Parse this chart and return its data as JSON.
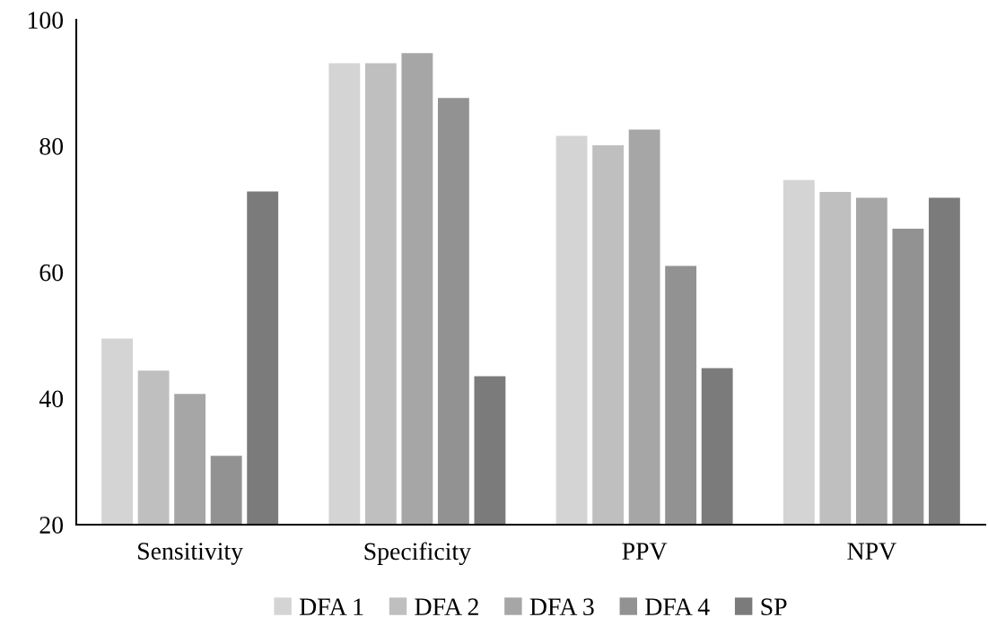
{
  "chart_data": {
    "type": "bar",
    "categories": [
      "Sensitivity",
      "Specificity",
      "PPV",
      "NPV"
    ],
    "series": [
      {
        "name": "DFA 1",
        "color": "#d4d4d4",
        "values": [
          49.5,
          93.1,
          81.6,
          74.6
        ]
      },
      {
        "name": "DFA 2",
        "color": "#bfbfbf",
        "values": [
          44.4,
          93.1,
          80.1,
          72.7
        ]
      },
      {
        "name": "DFA 3",
        "color": "#a6a6a6",
        "values": [
          40.7,
          94.7,
          82.6,
          71.8
        ]
      },
      {
        "name": "DFA 4",
        "color": "#929292",
        "values": [
          30.9,
          87.6,
          61.0,
          66.9
        ]
      },
      {
        "name": "SP",
        "color": "#7b7b7b",
        "values": [
          72.8,
          43.5,
          44.8,
          71.8
        ]
      }
    ],
    "ylim": [
      20,
      100
    ],
    "yticks": [
      20,
      40,
      60,
      80,
      100
    ],
    "grid": false,
    "legend": "bottom"
  }
}
